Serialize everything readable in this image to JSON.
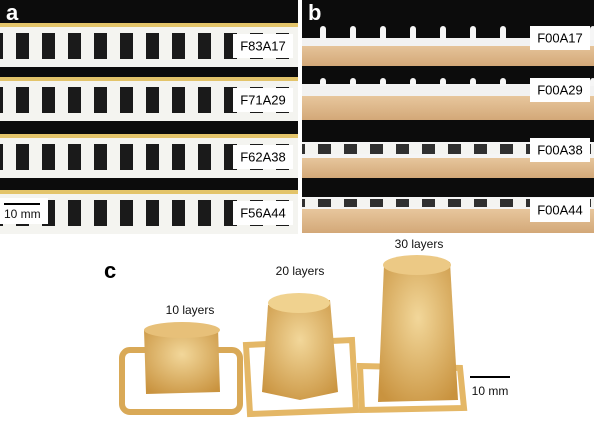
{
  "panel_a": {
    "label": "a",
    "samples": [
      "F83A17",
      "F71A29",
      "F62A38",
      "F56A44"
    ],
    "scale_bar": "10 mm"
  },
  "panel_b": {
    "label": "b",
    "samples": [
      "F00A17",
      "F00A29",
      "F00A38",
      "F00A44"
    ]
  },
  "panel_c": {
    "label": "c",
    "prints": [
      "10 layers",
      "20 layers",
      "30 layers"
    ],
    "scale_bar": "10 mm"
  }
}
